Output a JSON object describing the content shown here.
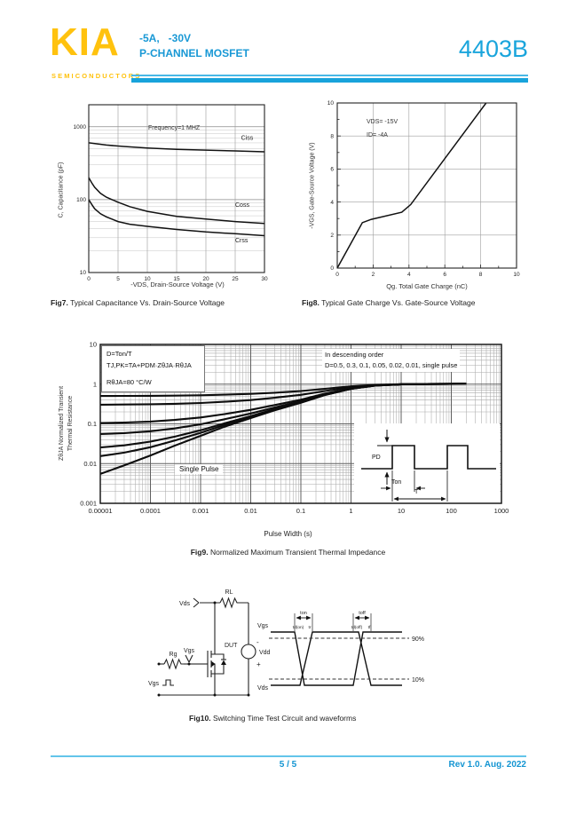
{
  "header": {
    "logo_text": "KIA",
    "logo_subtext": "SEMICONDUCTORS",
    "rating_line": "-5A,   -30V",
    "type_line": "P-CHANNEL MOSFET",
    "part_number": "4403B"
  },
  "footer": {
    "page_indicator": "5 / 5",
    "revision": "Rev 1.0. Aug. 2022"
  },
  "colors": {
    "accent_cyan": "#18a3db",
    "accent_gold": "#ffc20e",
    "curve_black": "#111111"
  },
  "chart_data": [
    {
      "id": "fig7",
      "type": "line",
      "caption_prefix": "Fig7.",
      "caption": "Typical Capacitance Vs. Drain-Source Voltage",
      "annotation": "Frequency=1 MHZ",
      "xlabel": "-VDS, Drain-Source Voltage (V)",
      "ylabel": "C, Capacitance (pF)",
      "x_scale": "linear",
      "y_scale": "log",
      "xlim": [
        0,
        30
      ],
      "ylim": [
        10,
        2000
      ],
      "x_ticks": [
        0,
        5,
        10,
        15,
        20,
        25,
        30
      ],
      "y_ticks": [
        10,
        100,
        1000
      ],
      "grid": true,
      "series": [
        {
          "name": "Ciss",
          "label_at": [
            26,
            660
          ],
          "points": [
            [
              0,
              600
            ],
            [
              3,
              560
            ],
            [
              6,
              535
            ],
            [
              10,
              510
            ],
            [
              15,
              490
            ],
            [
              20,
              477
            ],
            [
              25,
              465
            ],
            [
              30,
              453
            ]
          ]
        },
        {
          "name": "Coss",
          "label_at": [
            25,
            80
          ],
          "points": [
            [
              0,
              200
            ],
            [
              0.5,
              170
            ],
            [
              1,
              148
            ],
            [
              2,
              122
            ],
            [
              3,
              108
            ],
            [
              5,
              92
            ],
            [
              7,
              80
            ],
            [
              10,
              69
            ],
            [
              15,
              59
            ],
            [
              20,
              54
            ],
            [
              25,
              50
            ],
            [
              30,
              47
            ]
          ]
        },
        {
          "name": "Crss",
          "label_at": [
            25,
            26
          ],
          "points": [
            [
              0,
              100
            ],
            [
              0.5,
              86
            ],
            [
              1,
              75
            ],
            [
              2,
              64
            ],
            [
              3,
              58
            ],
            [
              5,
              50
            ],
            [
              7,
              46
            ],
            [
              10,
              43
            ],
            [
              15,
              39
            ],
            [
              20,
              36
            ],
            [
              25,
              34
            ],
            [
              30,
              32
            ]
          ]
        }
      ]
    },
    {
      "id": "fig8",
      "type": "line",
      "caption_prefix": "Fig8.",
      "caption": "Typical Gate Charge Vs. Gate-Source Voltage",
      "annotations": [
        "VDS= -15V",
        "ID= -4A"
      ],
      "xlabel": "Qg. Total Gate Charge (nC)",
      "ylabel": "-VGS, Gate-Source Voltage (V)",
      "x_scale": "linear",
      "y_scale": "linear",
      "xlim": [
        0,
        10
      ],
      "ylim": [
        0,
        10
      ],
      "x_ticks": [
        0,
        2,
        4,
        6,
        8,
        10
      ],
      "y_ticks": [
        0,
        2,
        4,
        6,
        8,
        10
      ],
      "grid": true,
      "series": [
        {
          "name": "-VGS",
          "points": [
            [
              0,
              0
            ],
            [
              1.4,
              2.75
            ],
            [
              1.9,
              2.95
            ],
            [
              3.6,
              3.38
            ],
            [
              4.1,
              3.85
            ],
            [
              8.3,
              10
            ]
          ]
        }
      ]
    },
    {
      "id": "fig9",
      "type": "line",
      "caption_prefix": "Fig9.",
      "caption": "Normalized Maximum Transient Thermal Impedance",
      "xlabel": "Pulse Width (s)",
      "ylabel_line1": "ZθJA Normalized Transient",
      "ylabel_line2": "Thermal Resistance",
      "x_scale": "log",
      "y_scale": "log",
      "xlim": [
        1e-05,
        1000
      ],
      "ylim": [
        0.001,
        10
      ],
      "x_tick_labels": [
        "0.00001",
        "0.0001",
        "0.001",
        "0.01",
        "0.1",
        "1",
        "10",
        "100",
        "1000"
      ],
      "y_tick_labels": [
        "10",
        "1",
        "0.1",
        "0.01",
        "0.001"
      ],
      "formula_lines": [
        "D=Ton/T",
        "TJ,PK=TA+PDM·ZθJA·RθJA",
        "RθJA=80 °C/W"
      ],
      "legend_lines": [
        "In descending order",
        "D=0.5, 0.3, 0.1, 0.05, 0.02, 0.01, single pulse"
      ],
      "single_pulse_label": "Single Pulse",
      "duty_cycles": [
        0.5,
        0.3,
        0.1,
        0.05,
        0.02,
        0.01
      ],
      "single_pulse_points": [
        [
          1e-05,
          0.0055
        ],
        [
          3e-05,
          0.009
        ],
        [
          0.0001,
          0.016
        ],
        [
          0.0003,
          0.028
        ],
        [
          0.001,
          0.05
        ],
        [
          0.003,
          0.085
        ],
        [
          0.01,
          0.14
        ],
        [
          0.03,
          0.22
        ],
        [
          0.1,
          0.34
        ],
        [
          0.3,
          0.53
        ],
        [
          1,
          0.76
        ],
        [
          3,
          0.92
        ],
        [
          10,
          0.99
        ],
        [
          30,
          1.01
        ],
        [
          100,
          1.02
        ],
        [
          200,
          1.03
        ]
      ],
      "inset_labels": {
        "pd": "PD",
        "ton": "Ton",
        "t": "T"
      }
    }
  ],
  "fig10": {
    "caption_prefix": "Fig10.",
    "caption": "Switching Time Test Circuit and waveforms",
    "circuit_labels": {
      "rl": "RL",
      "vds_probe": "Vds",
      "dut": "DUT",
      "vdd": "Vdd",
      "minus": "-",
      "plus": "+",
      "vgs_probe": "Vgs",
      "rg": "Rg",
      "vgs_source": "Vgs"
    },
    "waveform_labels": {
      "vgs": "Vgs",
      "vds": "Vds",
      "p90": "90%",
      "p10": "10%",
      "ton": "ton",
      "toff": "toff",
      "td_on": "td(on)",
      "tr": "tr",
      "td_off": "td(off)",
      "tf": "tf"
    }
  }
}
